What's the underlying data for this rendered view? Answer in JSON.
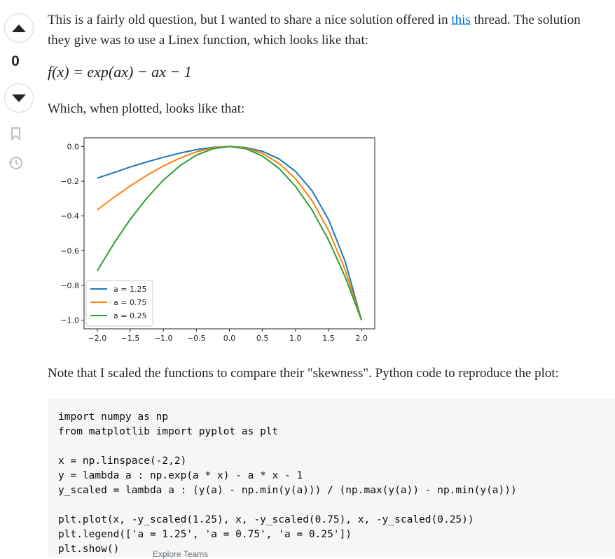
{
  "vote": {
    "score": "0"
  },
  "answer": {
    "intro": {
      "before": "This is a fairly old question, but I wanted to share a nice solution offered in ",
      "link": "this",
      "after": " thread. The solution they give was to use a Linex function, which looks like that:"
    },
    "formula": "f(x) = exp(ax) − ax − 1",
    "plotted": "Which, when plotted, looks like that:",
    "note": "Note that I scaled the functions to compare their \"skewness\". Python code to reproduce the plot:",
    "code": [
      [
        "import numpy as np",
        "from matplotlib import pyplot as plt"
      ],
      [
        "x = np.linspace(-2,2)",
        "y = lambda a : np.exp(a * x) - a * x - 1",
        "y_scaled = lambda a : (y(a) - np.min(y(a))) / (np.max(y(a)) - np.min(y(a)))"
      ],
      [
        "plt.plot(x, -y_scaled(1.25), x, -y_scaled(0.75), x, -y_scaled(0.25))",
        "plt.legend(['a = 1.25', 'a = 0.75', 'a = 0.25'])",
        "plt.show()"
      ]
    ]
  },
  "footer": "Explore Teams",
  "plot": {
    "type": "line",
    "x": [
      -2,
      -1.75,
      -1.5,
      -1.25,
      -1,
      -0.75,
      -0.5,
      -0.25,
      0,
      0.25,
      0.5,
      0.75,
      1,
      1.25,
      1.5,
      1.75,
      2
    ],
    "series": [
      {
        "name": "a = 1.25",
        "color": "#1f77b4",
        "values": [
          -0.182,
          -0.15,
          -0.118,
          -0.089,
          -0.062,
          -0.038,
          -0.018,
          -0.005,
          0,
          -0.006,
          -0.028,
          -0.071,
          -0.143,
          -0.254,
          -0.42,
          -0.659,
          -1
        ]
      },
      {
        "name": "a = 0.75",
        "color": "#ff7f0e",
        "values": [
          -0.365,
          -0.293,
          -0.227,
          -0.166,
          -0.112,
          -0.067,
          -0.031,
          -0.008,
          0,
          -0.009,
          -0.04,
          -0.097,
          -0.185,
          -0.311,
          -0.482,
          -0.708,
          -1
        ]
      },
      {
        "name": "a = 0.25",
        "color": "#2ca02c",
        "values": [
          -0.716,
          -0.559,
          -0.419,
          -0.297,
          -0.194,
          -0.111,
          -0.05,
          -0.013,
          0,
          -0.013,
          -0.055,
          -0.126,
          -0.229,
          -0.365,
          -0.538,
          -0.749,
          -1
        ]
      }
    ],
    "xlim": [
      -2.2,
      2.2
    ],
    "ylim": [
      -1.05,
      0.05
    ],
    "xticks": [
      {
        "value": -2,
        "label": "−2.0"
      },
      {
        "value": -1.5,
        "label": "−1.5"
      },
      {
        "value": -1,
        "label": "−1.0"
      },
      {
        "value": -0.5,
        "label": "−0.5"
      },
      {
        "value": 0,
        "label": "0.0"
      },
      {
        "value": 0.5,
        "label": "0.5"
      },
      {
        "value": 1,
        "label": "1.0"
      },
      {
        "value": 1.5,
        "label": "1.5"
      },
      {
        "value": 2,
        "label": "2.0"
      }
    ],
    "yticks": [
      {
        "value": 0,
        "label": "0.0"
      },
      {
        "value": -0.2,
        "label": "−0.2"
      },
      {
        "value": -0.4,
        "label": "−0.4"
      },
      {
        "value": -0.6,
        "label": "−0.6"
      },
      {
        "value": -0.8,
        "label": "−0.8"
      },
      {
        "value": -1,
        "label": "−1.0"
      }
    ],
    "legend": "lower left"
  }
}
